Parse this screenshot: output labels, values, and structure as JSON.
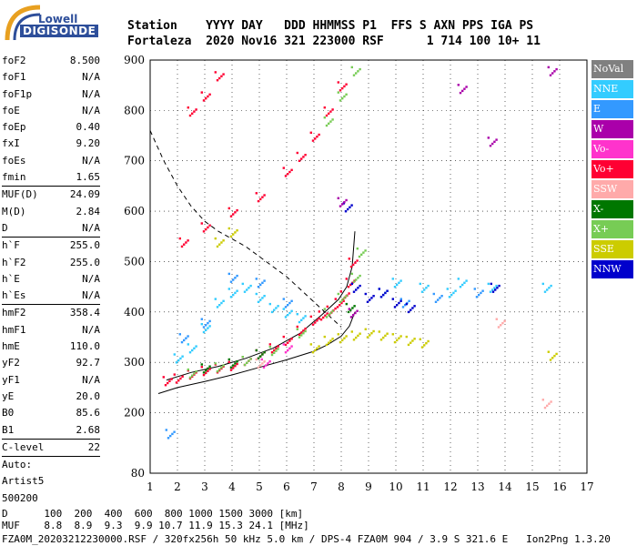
{
  "logo": {
    "top": "Lowell",
    "bottom": "DIGISONDE"
  },
  "header": {
    "line1": "Station    YYYY DAY   DDD HHMMSS P1  FFS S AXN PPS IGA PS",
    "line2": "Fortaleza  2020 Nov16 321 223000 RSF      1 714 100 10+ 11"
  },
  "params": [
    {
      "name": "foF2",
      "value": "8.500"
    },
    {
      "name": "foF1",
      "value": "N/A"
    },
    {
      "name": "foF1p",
      "value": "N/A"
    },
    {
      "name": "foE",
      "value": "N/A"
    },
    {
      "name": "foEp",
      "value": "0.40"
    },
    {
      "name": "fxI",
      "value": "9.20"
    },
    {
      "name": "foEs",
      "value": "N/A"
    },
    {
      "name": "fmin",
      "value": "1.65"
    },
    {
      "sep": true
    },
    {
      "name": "MUF(D)",
      "value": "24.09"
    },
    {
      "name": "M(D)",
      "value": "2.84"
    },
    {
      "name": "D",
      "value": "N/A"
    },
    {
      "sep": true
    },
    {
      "name": "h`F",
      "value": "255.0"
    },
    {
      "name": "h`F2",
      "value": "255.0"
    },
    {
      "name": "h`E",
      "value": "N/A"
    },
    {
      "name": "h`Es",
      "value": "N/A"
    },
    {
      "sep": true
    },
    {
      "name": "hmF2",
      "value": "358.4"
    },
    {
      "name": "hmF1",
      "value": "N/A"
    },
    {
      "name": "hmE",
      "value": "110.0"
    },
    {
      "name": "yF2",
      "value": "92.7"
    },
    {
      "name": "yF1",
      "value": "N/A"
    },
    {
      "name": "yE",
      "value": "20.0"
    },
    {
      "name": "B0",
      "value": "85.6"
    },
    {
      "name": "B1",
      "value": "2.68"
    },
    {
      "sep": true
    },
    {
      "name": "C-level",
      "value": "22"
    },
    {
      "sep": true
    },
    {
      "name": "Auto:",
      "value": ""
    },
    {
      "name": "Artist5",
      "value": ""
    },
    {
      "name": "500200",
      "value": ""
    }
  ],
  "footer": {
    "d_line": "D      100  200  400  600  800 1000 1500 3000 [km]",
    "muf_line": "MUF    8.8  8.9  9.3  9.9 10.7 11.9 15.3 24.1 [MHz]",
    "file_line": "FZA0M_20203212230000.RSF / 320fx256h 50 kHz 5.0 km / DPS-4 FZA0M 904 / 3.9 S 321.6 E   Ion2Png 1.3.20"
  },
  "legend": [
    {
      "label": "NoVal",
      "color": "#808080"
    },
    {
      "label": "NNE",
      "color": "#33ccff"
    },
    {
      "label": "E",
      "color": "#3399ff"
    },
    {
      "label": "W",
      "color": "#aa00aa"
    },
    {
      "label": "Vo-",
      "color": "#ff33cc"
    },
    {
      "label": "Vo+",
      "color": "#ff0033"
    },
    {
      "label": "SSW",
      "color": "#ffaaaa"
    },
    {
      "label": "X-",
      "color": "#007700"
    },
    {
      "label": "X+",
      "color": "#77cc55"
    },
    {
      "label": "SSE",
      "color": "#cccc00"
    },
    {
      "label": "NNW",
      "color": "#0000cc"
    }
  ],
  "chart_data": {
    "type": "scatter",
    "xlim": [
      1,
      17
    ],
    "ylim": [
      80,
      900
    ],
    "xticks": [
      1,
      2,
      3,
      4,
      5,
      6,
      7,
      8,
      9,
      10,
      11,
      12,
      13,
      14,
      15,
      16,
      17
    ],
    "yticks": [
      80,
      200,
      300,
      400,
      500,
      600,
      700,
      800,
      900
    ],
    "grid": true,
    "series": [
      {
        "name": "Vo+",
        "color": "#ff0033",
        "points": [
          [
            1.6,
            265
          ],
          [
            2.0,
            270
          ],
          [
            2.5,
            278
          ],
          [
            3.0,
            285
          ],
          [
            3.5,
            290
          ],
          [
            4.0,
            295
          ],
          [
            4.5,
            305
          ],
          [
            5.0,
            318
          ],
          [
            5.5,
            330
          ],
          [
            6.0,
            345
          ],
          [
            6.5,
            365
          ],
          [
            7.0,
            385
          ],
          [
            7.3,
            395
          ],
          [
            7.6,
            405
          ],
          [
            7.9,
            420
          ],
          [
            8.1,
            435
          ],
          [
            8.3,
            460
          ],
          [
            8.4,
            500
          ],
          [
            2.2,
            540
          ],
          [
            3.0,
            570
          ],
          [
            4.0,
            600
          ],
          [
            5.0,
            630
          ],
          [
            6.0,
            680
          ],
          [
            6.5,
            710
          ],
          [
            7.0,
            750
          ],
          [
            7.5,
            800
          ],
          [
            8.0,
            850
          ],
          [
            2.5,
            800
          ],
          [
            3.0,
            830
          ],
          [
            3.5,
            870
          ]
        ]
      },
      {
        "name": "X+",
        "color": "#77cc55",
        "points": [
          [
            2.5,
            280
          ],
          [
            3.5,
            292
          ],
          [
            4.5,
            305
          ],
          [
            5.5,
            325
          ],
          [
            6.5,
            360
          ],
          [
            7.5,
            400
          ],
          [
            8.0,
            430
          ],
          [
            8.5,
            470
          ],
          [
            8.7,
            520
          ],
          [
            7.5,
            780
          ],
          [
            8.0,
            830
          ],
          [
            8.5,
            880
          ]
        ]
      },
      {
        "name": "X-",
        "color": "#007700",
        "points": [
          [
            3.0,
            290
          ],
          [
            4.0,
            300
          ],
          [
            5.0,
            318
          ],
          [
            8.3,
            410
          ]
        ]
      },
      {
        "name": "SSE",
        "color": "#cccc00",
        "points": [
          [
            3.5,
            540
          ],
          [
            4.0,
            560
          ],
          [
            7.0,
            330
          ],
          [
            7.5,
            345
          ],
          [
            8.0,
            350
          ],
          [
            8.5,
            355
          ],
          [
            9.0,
            360
          ],
          [
            9.5,
            355
          ],
          [
            10.0,
            350
          ],
          [
            10.5,
            345
          ],
          [
            11.0,
            340
          ],
          [
            15.7,
            315
          ]
        ]
      },
      {
        "name": "NNE",
        "color": "#33ccff",
        "points": [
          [
            2.0,
            310
          ],
          [
            2.5,
            330
          ],
          [
            3.0,
            370
          ],
          [
            3.5,
            420
          ],
          [
            4.0,
            440
          ],
          [
            4.5,
            450
          ],
          [
            5.0,
            430
          ],
          [
            5.5,
            410
          ],
          [
            6.0,
            400
          ],
          [
            6.5,
            390
          ],
          [
            9.5,
            440
          ],
          [
            10.0,
            460
          ],
          [
            11.0,
            450
          ],
          [
            12.0,
            440
          ],
          [
            12.4,
            460
          ],
          [
            13.5,
            450
          ],
          [
            15.5,
            450
          ]
        ]
      },
      {
        "name": "E",
        "color": "#3399ff",
        "points": [
          [
            1.7,
            160
          ],
          [
            2.2,
            350
          ],
          [
            3.0,
            380
          ],
          [
            4.0,
            470
          ],
          [
            5.0,
            460
          ],
          [
            6.0,
            420
          ],
          [
            10.3,
            420
          ],
          [
            11.5,
            430
          ],
          [
            13.0,
            440
          ]
        ]
      },
      {
        "name": "NNW",
        "color": "#0000cc",
        "points": [
          [
            8.2,
            610
          ],
          [
            8.5,
            450
          ],
          [
            9.0,
            430
          ],
          [
            9.5,
            440
          ],
          [
            10.0,
            420
          ],
          [
            10.5,
            410
          ],
          [
            13.6,
            450
          ]
        ]
      },
      {
        "name": "W",
        "color": "#aa00aa",
        "points": [
          [
            8.0,
            620
          ],
          [
            8.4,
            400
          ],
          [
            12.4,
            845
          ],
          [
            13.5,
            740
          ],
          [
            15.7,
            880
          ]
        ]
      },
      {
        "name": "SSW",
        "color": "#ffaaaa",
        "points": [
          [
            5.0,
            300
          ],
          [
            13.8,
            380
          ],
          [
            15.5,
            220
          ]
        ]
      },
      {
        "name": "Vo-",
        "color": "#ff33cc",
        "points": [
          [
            5.2,
            300
          ],
          [
            6.0,
            330
          ]
        ]
      }
    ],
    "curves": [
      {
        "name": "dashed",
        "style": "dashed",
        "points": [
          [
            1.0,
            760
          ],
          [
            1.5,
            700
          ],
          [
            2.0,
            650
          ],
          [
            2.5,
            610
          ],
          [
            3.0,
            580
          ],
          [
            3.5,
            560
          ],
          [
            4.0,
            545
          ],
          [
            4.5,
            530
          ],
          [
            5.0,
            510
          ],
          [
            5.5,
            490
          ],
          [
            6.0,
            470
          ],
          [
            6.5,
            445
          ],
          [
            7.0,
            420
          ],
          [
            7.5,
            395
          ],
          [
            8.0,
            370
          ]
        ]
      },
      {
        "name": "profile",
        "style": "solid",
        "points": [
          [
            1.3,
            238
          ],
          [
            2.0,
            250
          ],
          [
            3.0,
            262
          ],
          [
            4.0,
            275
          ],
          [
            5.0,
            290
          ],
          [
            6.0,
            305
          ],
          [
            7.0,
            322
          ],
          [
            7.5,
            335
          ],
          [
            8.0,
            352
          ],
          [
            8.3,
            372
          ],
          [
            8.5,
            400
          ]
        ]
      },
      {
        "name": "trace",
        "style": "solid",
        "points": [
          [
            1.6,
            265
          ],
          [
            2.5,
            280
          ],
          [
            3.5,
            292
          ],
          [
            4.5,
            308
          ],
          [
            5.5,
            328
          ],
          [
            6.5,
            358
          ],
          [
            7.3,
            395
          ],
          [
            7.9,
            425
          ],
          [
            8.2,
            450
          ],
          [
            8.4,
            490
          ],
          [
            8.5,
            560
          ]
        ]
      }
    ]
  }
}
